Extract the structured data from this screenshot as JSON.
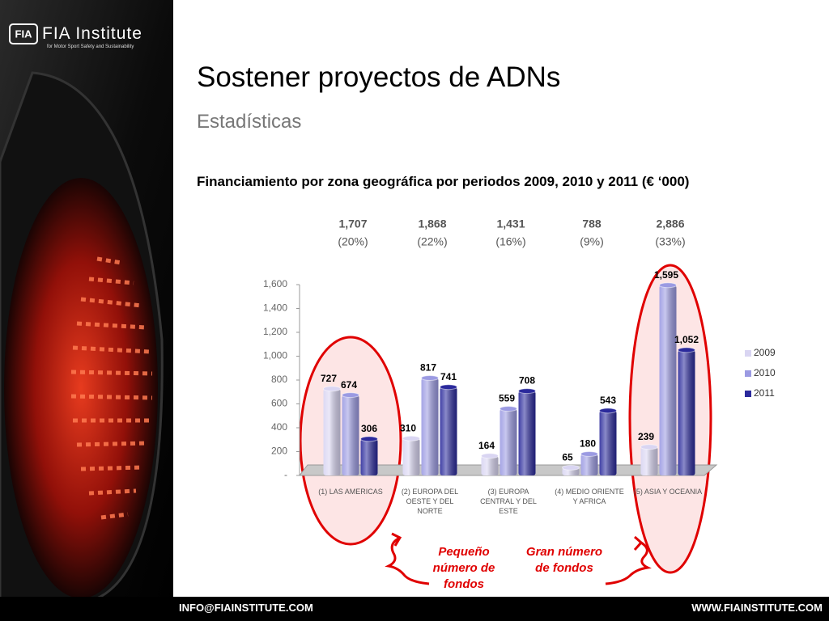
{
  "logo": {
    "name": "FIA Institute",
    "tagline": "for Motor Sport Safety and Sustainability"
  },
  "heading": "Sostener proyectos de ADNs",
  "subheading": "Estadísticas",
  "chart_data": {
    "type": "bar",
    "title": "Financiamiento por zona geográfica por periodos 2009, 2010 y 2011 (€ ‘000)",
    "categories": [
      "(1) LAS AMERICAS",
      "(2) EUROPA DEL OESTE Y DEL NORTE",
      "(3) EUROPA CENTRAL Y DEL ESTE",
      "(4) MEDIO ORIENTE Y AFRICA",
      "(5) ASIA Y OCEANIA"
    ],
    "totals": [
      "1,707",
      "1,868",
      "1,431",
      "788",
      "2,886"
    ],
    "shares": [
      "(20%)",
      "(22%)",
      "(16%)",
      "(9%)",
      "(33%)"
    ],
    "series": [
      {
        "name": "2009",
        "color": "#d9d5f2",
        "values": [
          727,
          310,
          164,
          65,
          239
        ]
      },
      {
        "name": "2010",
        "color": "#9b9ae2",
        "values": [
          674,
          817,
          559,
          180,
          1595
        ],
        "value_labels": [
          "674",
          "817",
          "559",
          "180",
          "1,595"
        ]
      },
      {
        "name": "2011",
        "color": "#2b2a9c",
        "values": [
          306,
          741,
          708,
          543,
          1052
        ],
        "value_labels": [
          "306",
          "741",
          "708",
          "543",
          "1,052"
        ]
      }
    ],
    "ylim": [
      0,
      1600
    ],
    "yticks": [
      {
        "value": 0,
        "label": "-"
      },
      200,
      400,
      600,
      800,
      {
        "value": 1000,
        "label": "1,000"
      },
      {
        "value": 1200,
        "label": "1,200"
      },
      {
        "value": 1400,
        "label": "1,400"
      },
      {
        "value": 1600,
        "label": "1,600"
      }
    ],
    "legend": "right",
    "annotations": [
      "Pequeño número de fondos",
      "Gran número de fondos"
    ]
  },
  "footer": {
    "email": "INFO@FIAINSTITUTE.COM",
    "web": "WWW.FIAINSTITUTE.COM"
  }
}
